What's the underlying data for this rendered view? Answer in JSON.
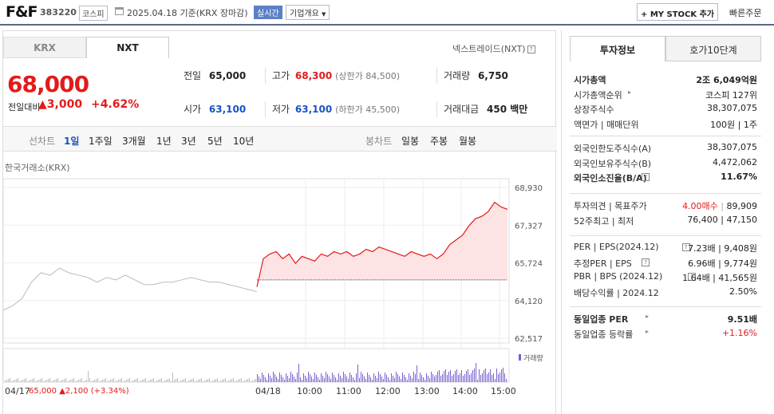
{
  "header": {
    "name": "F&F",
    "code": "383220",
    "market": "코스피",
    "date": "2025.04.18 기준(KRX 장마감)",
    "realtime": "실시간",
    "company_info": "기업개요",
    "mystock": "MY STOCK 추가",
    "quick_order": "빠른주문"
  },
  "tabs": {
    "krx": "KRX",
    "nxt": "NXT",
    "nxt_link": "넥스트레이드(NXT)"
  },
  "price": {
    "current": "68,000",
    "change_label": "전일대비",
    "change": "3,000",
    "change_pct": "+4.62%",
    "prev_label": "전일",
    "prev": "65,000",
    "high_label": "고가",
    "high": "68,300",
    "upper_limit": "(상한가 84,500)",
    "volume_label": "거래량",
    "volume": "6,750",
    "open_label": "시가",
    "open": "63,100",
    "low_label": "저가",
    "low": "63,100",
    "lower_limit": "(하한가 45,500)",
    "amount_label": "거래대금",
    "amount": "450 백만"
  },
  "periods": {
    "line_label": "선차트",
    "line": [
      "1일",
      "1주일",
      "3개월",
      "1년",
      "3년",
      "5년",
      "10년"
    ],
    "candle_label": "봉차트",
    "candle": [
      "일봉",
      "주봉",
      "월봉"
    ]
  },
  "chart_title": "한국거래소(KRX)",
  "chart_data": {
    "type": "line",
    "ylim": [
      62517,
      68930
    ],
    "yticks": [
      "68,930",
      "67,327",
      "65,724",
      "64,120",
      "62,517"
    ],
    "baseline": 65000,
    "xticks": [
      "04/17",
      "04/18",
      "10:00",
      "11:00",
      "12:00",
      "13:00",
      "14:00",
      "15:00"
    ],
    "prev_day": [
      63700,
      63900,
      64200,
      64900,
      65300,
      65200,
      65500,
      65300,
      65200,
      65100,
      64900,
      65100,
      65000,
      65200,
      65000,
      64800,
      64800,
      64900,
      64900,
      65000,
      65100,
      65000,
      64900,
      64900,
      64800,
      64700,
      64600,
      64500
    ],
    "today": [
      64700,
      65900,
      66100,
      66200,
      65900,
      66100,
      65700,
      66000,
      65900,
      65800,
      66100,
      66000,
      66200,
      66100,
      66200,
      66000,
      66100,
      66300,
      66200,
      66400,
      66300,
      66200,
      66100,
      66000,
      66200,
      66100,
      66000,
      66100,
      65900,
      66100,
      66500,
      66700,
      66900,
      67300,
      67600,
      67700,
      67900,
      68300,
      68100,
      68000
    ],
    "volume_label": "거래량",
    "footer_prev": "04/17",
    "footer_prev_price": "65,000",
    "footer_prev_change": "2,100",
    "footer_prev_pct": "(+3.34%)"
  },
  "invest": {
    "tab1": "투자정보",
    "tab2": "호가10단계",
    "rows1": [
      {
        "l": "시가총액",
        "r": "2조 6,049억원",
        "bold": true
      },
      {
        "l": "시가총액순위",
        "r": "코스피 127위"
      },
      {
        "l": "상장주식수",
        "r": "38,307,075"
      },
      {
        "l": "액면가 | 매매단위",
        "r": "100원 | 1주"
      }
    ],
    "rows2": [
      {
        "l": "외국인한도주식수(A)",
        "r": "38,307,075"
      },
      {
        "l": "외국인보유주식수(B)",
        "r": "4,472,062"
      },
      {
        "l": "외국인소진율(B/A)",
        "r": "11.67%",
        "bold": true
      }
    ],
    "rows3": [
      {
        "l": "투자의견 | 목표주가",
        "r1": "4.00매수",
        "r2": "89,909"
      },
      {
        "l": "52주최고 | 최저",
        "r": "76,400 | 47,150"
      }
    ],
    "rows4": [
      {
        "l": "PER | EPS(2024.12)",
        "r": "7.23배 | 9,408원"
      },
      {
        "l": "추정PER | EPS",
        "r": "6.96배 | 9,774원"
      },
      {
        "l": "PBR | BPS (2024.12)",
        "r": "1.64배 | 41,565원"
      },
      {
        "l": "배당수익률 | 2024.12",
        "r": "2.50%"
      }
    ],
    "rows5": [
      {
        "l": "동일업종 PER",
        "r": "9.51배",
        "bold": true
      },
      {
        "l": "동일업종 등락률",
        "r": "+1.16%"
      }
    ]
  }
}
